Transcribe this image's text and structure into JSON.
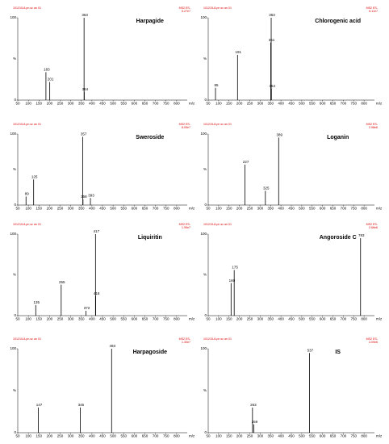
{
  "chart_data": [
    {
      "type": "spectrum",
      "title": "Harpagide",
      "sample": "101215-8-pn sc an 01",
      "scan_info": [
        "MS2 ES-",
        "5.27e7"
      ],
      "xlabel": "m/z",
      "ylabel": "%",
      "color": "#000000",
      "x": [
        183,
        201,
        363,
        364
      ],
      "values": [
        34,
        22,
        100,
        10
      ],
      "xlim": [
        50,
        850
      ],
      "xticks": [
        50,
        100,
        150,
        200,
        250,
        300,
        350,
        400,
        450,
        500,
        550,
        600,
        650,
        700,
        750,
        800
      ],
      "ylim": [
        0,
        100
      ],
      "yticks": [
        0,
        100
      ]
    },
    {
      "type": "spectrum",
      "title": "Chlorogenic acid",
      "sample": "101215-8-pn sc an 01",
      "scan_info": [
        "MS2 ES-",
        "6.11e7"
      ],
      "xlabel": "m/z",
      "ylabel": "%",
      "color": "#000000",
      "x": [
        85,
        191,
        351,
        353,
        354
      ],
      "values": [
        15,
        55,
        70,
        100,
        14
      ],
      "xlim": [
        50,
        850
      ],
      "xticks": [
        50,
        100,
        150,
        200,
        250,
        300,
        350,
        400,
        450,
        500,
        550,
        600,
        650,
        700,
        750,
        800
      ],
      "ylim": [
        0,
        100
      ],
      "yticks": [
        0,
        100
      ]
    },
    {
      "type": "spectrum",
      "title": "Sweroside",
      "sample": "101215-8-pn sc an 01",
      "scan_info": [
        "MS2 ES-",
        "8.05e7"
      ],
      "xlabel": "m/z",
      "ylabel": "%",
      "color": "#000000",
      "x": [
        89,
        125,
        357,
        358,
        393
      ],
      "values": [
        12,
        36,
        96,
        8,
        10
      ],
      "xlim": [
        50,
        850
      ],
      "xticks": [
        50,
        100,
        150,
        200,
        250,
        300,
        350,
        400,
        450,
        500,
        550,
        600,
        650,
        700,
        750,
        800
      ],
      "ylim": [
        0,
        100
      ],
      "yticks": [
        0,
        100
      ]
    },
    {
      "type": "spectrum",
      "title": "Loganin",
      "sample": "101215-8-pn sc an 01",
      "scan_info": [
        "MS2 ES-",
        "2.98e6"
      ],
      "xlabel": "m/z",
      "ylabel": "%",
      "color": "#000000",
      "x": [
        227,
        325,
        389
      ],
      "values": [
        57,
        20,
        95
      ],
      "xlim": [
        50,
        850
      ],
      "xticks": [
        50,
        100,
        150,
        200,
        250,
        300,
        350,
        400,
        450,
        500,
        550,
        600,
        650,
        700,
        750,
        800
      ],
      "ylim": [
        0,
        100
      ],
      "yticks": [
        0,
        100
      ]
    },
    {
      "type": "spectrum",
      "title": "Liquiritin",
      "sample": "101215-8-pn sc an 01",
      "scan_info": [
        "MS2 ES-",
        "1.95e7"
      ],
      "xlabel": "m/z",
      "ylabel": "%",
      "color": "#000000",
      "x": [
        135,
        255,
        372,
        417,
        418
      ],
      "values": [
        13,
        38,
        6,
        100,
        24
      ],
      "xlim": [
        50,
        850
      ],
      "xticks": [
        50,
        100,
        150,
        200,
        250,
        300,
        350,
        400,
        450,
        500,
        550,
        600,
        650,
        700,
        750,
        800
      ],
      "ylim": [
        0,
        100
      ],
      "yticks": [
        0,
        100
      ]
    },
    {
      "type": "spectrum",
      "title": "Angoroside C",
      "sample": "101215-8-pn sc an 01",
      "scan_info": [
        "MS2 ES-",
        "2.66e6"
      ],
      "xlabel": "m/z",
      "ylabel": "%",
      "color": "#000000",
      "x": [
        160,
        175,
        783
      ],
      "values": [
        40,
        56,
        95
      ],
      "xlim": [
        50,
        850
      ],
      "xticks": [
        50,
        100,
        150,
        200,
        250,
        300,
        350,
        400,
        450,
        500,
        550,
        600,
        650,
        700,
        750,
        800
      ],
      "ylim": [
        0,
        100
      ],
      "yticks": [
        0,
        100
      ]
    },
    {
      "type": "spectrum",
      "title": "Harpagoside",
      "sample": "101215-8-pn sc an 01",
      "scan_info": [
        "MS2 ES-",
        "1.30e7"
      ],
      "xlabel": "m/z",
      "ylabel": "%",
      "color": "#000000",
      "x": [
        147,
        345,
        493
      ],
      "values": [
        30,
        30,
        100
      ],
      "xlim": [
        50,
        850
      ],
      "xticks": [
        50,
        100,
        150,
        200,
        250,
        300,
        350,
        400,
        450,
        500,
        550,
        600,
        650,
        700,
        750,
        800
      ],
      "ylim": [
        0,
        100
      ],
      "yticks": [
        0,
        100
      ]
    },
    {
      "type": "spectrum",
      "title": "IS",
      "sample": "101215-8-pn sc an 01",
      "scan_info": [
        "MS2 ES-",
        "3.09e6"
      ],
      "xlabel": "m/z",
      "ylabel": "%",
      "color": "#000000",
      "x": [
        263,
        269,
        537
      ],
      "values": [
        30,
        10,
        95
      ],
      "xlim": [
        50,
        850
      ],
      "xticks": [
        50,
        100,
        150,
        200,
        250,
        300,
        350,
        400,
        450,
        500,
        550,
        600,
        650,
        700,
        750,
        800
      ],
      "ylim": [
        0,
        100
      ],
      "yticks": [
        0,
        100
      ]
    }
  ]
}
